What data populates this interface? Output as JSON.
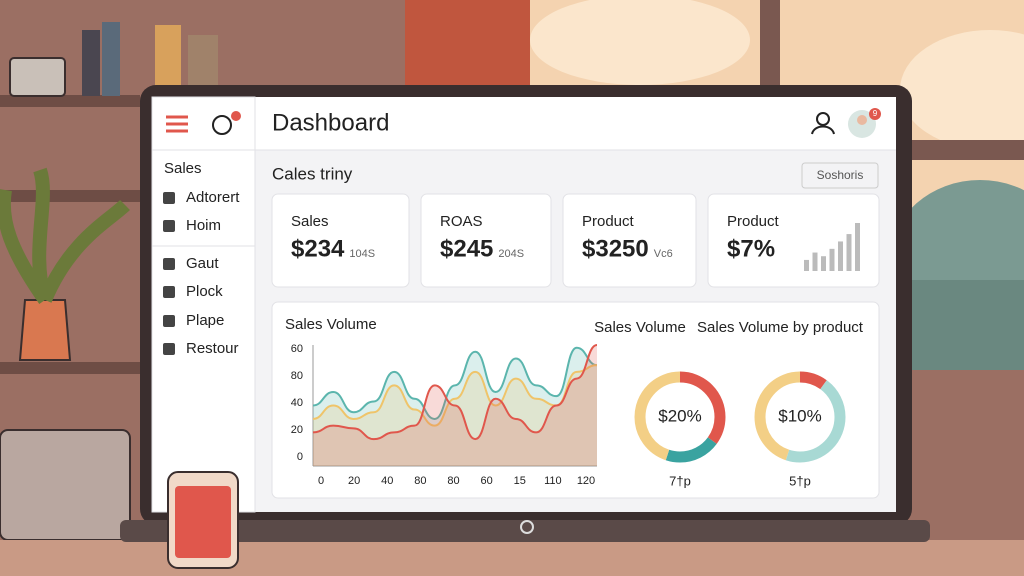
{
  "sidebar": {
    "items": [
      "Sales",
      "Adtorert",
      "Hoim",
      "Gaut",
      "Plock",
      "Plape",
      "Restour"
    ]
  },
  "header": {
    "title": "Dashboard",
    "badge": "9"
  },
  "section": {
    "title": "Cales triny",
    "button": "Soshoris"
  },
  "cards": [
    {
      "label": "Sales",
      "value": "$234",
      "sub": "104S"
    },
    {
      "label": "ROAS",
      "value": "$245",
      "sub": "204S"
    },
    {
      "label": "Product",
      "value": "$3250",
      "sub": "Vc6"
    },
    {
      "label": "Product",
      "value": "$7%",
      "bars": [
        3,
        5,
        4,
        6,
        8,
        10,
        13
      ]
    }
  ],
  "area_chart": {
    "title": "Sales Volume",
    "y_labels": [
      "60",
      "80",
      "40",
      "20",
      "0"
    ],
    "x_labels": [
      "0",
      "20",
      "40",
      "80",
      "80",
      "60",
      "15",
      "110",
      "120"
    ],
    "series": [
      {
        "color": "#5bb5ad",
        "values": [
          45,
          55,
          40,
          48,
          70,
          50,
          35,
          60,
          85,
          55,
          80,
          60,
          52,
          88,
          75
        ]
      },
      {
        "color": "#efc46a",
        "values": [
          35,
          45,
          35,
          40,
          60,
          42,
          30,
          50,
          70,
          45,
          65,
          50,
          45,
          70,
          75
        ]
      },
      {
        "color": "#e0574c",
        "values": [
          25,
          30,
          28,
          20,
          25,
          30,
          60,
          45,
          20,
          50,
          35,
          25,
          45,
          65,
          90
        ]
      }
    ]
  },
  "donuts": [
    {
      "title": "Sales Volume",
      "label": "$20%",
      "caption": "7†p",
      "segments": [
        {
          "color": "#e0574c",
          "value": 35
        },
        {
          "color": "#3aa3a0",
          "value": 20
        },
        {
          "color": "#f3cf86",
          "value": 45
        }
      ]
    },
    {
      "title": "Sales Volume by product",
      "label": "$10%",
      "caption": "5†p",
      "segments": [
        {
          "color": "#e0574c",
          "value": 10
        },
        {
          "color": "#a8d9d4",
          "value": 45
        },
        {
          "color": "#f3cf86",
          "value": 45
        }
      ]
    }
  ]
}
